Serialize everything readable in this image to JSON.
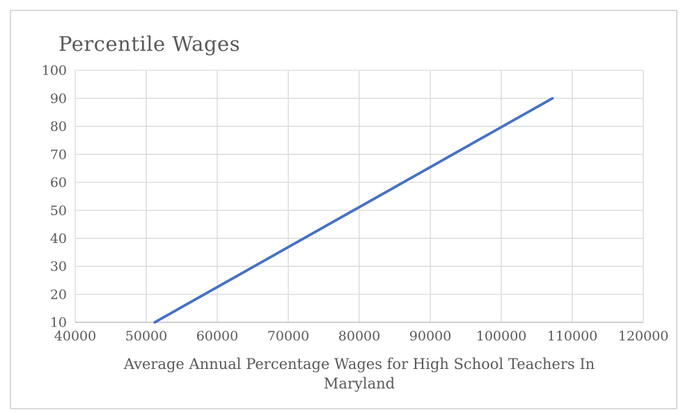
{
  "chart": {
    "title": "Percentile Wages",
    "x_axis_title_lines": {
      "0": "Average Annual Percentage Wages for High School Teachers In",
      "1": "Maryland"
    }
  },
  "chart_data": {
    "type": "line",
    "title": "Percentile Wages",
    "xlabel": "Average Annual Percentage Wages for High School Teachers In Maryland",
    "ylabel": "",
    "xlim": [
      40000,
      120000
    ],
    "ylim": [
      10,
      100
    ],
    "x_ticks": [
      40000,
      50000,
      60000,
      70000,
      80000,
      90000,
      100000,
      110000,
      120000
    ],
    "y_ticks": [
      10,
      20,
      30,
      40,
      50,
      60,
      70,
      80,
      90,
      100
    ],
    "grid": true,
    "legend_position": "none",
    "series": [
      {
        "name": "Percentile Wages",
        "color": "#4472C4",
        "points": [
          {
            "x": 51200,
            "y": 10
          },
          {
            "x": 107200,
            "y": 90
          }
        ]
      }
    ],
    "colors": {
      "gridline": "#D9D9D9",
      "axis_line": "#BFBFBF",
      "text": "#595959",
      "border": "#D9D9D9",
      "background": "#FFFFFF"
    }
  }
}
